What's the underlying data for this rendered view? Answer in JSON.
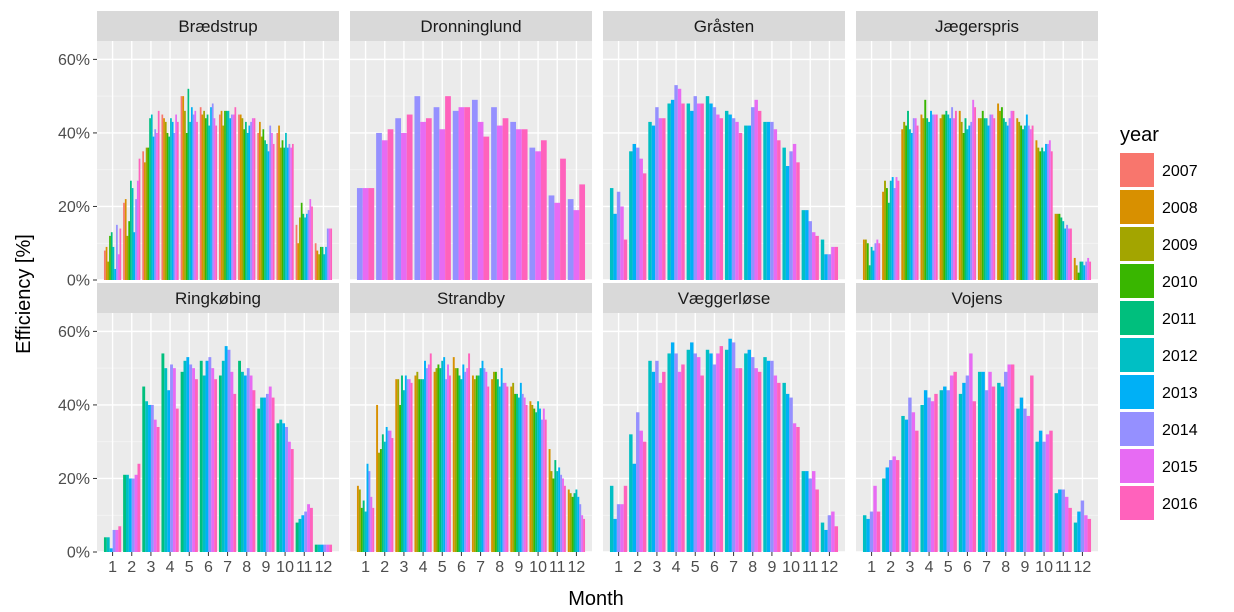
{
  "chart_data": {
    "type": "bar",
    "xlabel": "Month",
    "ylabel": "Efficiency [%]",
    "ylim": [
      0,
      65
    ],
    "y_ticks": [
      "0%",
      "20%",
      "40%",
      "60%"
    ],
    "x_ticks": [
      "1",
      "2",
      "3",
      "4",
      "5",
      "6",
      "7",
      "8",
      "9",
      "10",
      "11",
      "12"
    ],
    "legend_title": "year",
    "legend_position": "right",
    "grid": true,
    "series": [
      {
        "name": "2007",
        "color": "#F8766D"
      },
      {
        "name": "2008",
        "color": "#D89000"
      },
      {
        "name": "2009",
        "color": "#A3A500"
      },
      {
        "name": "2010",
        "color": "#39B600"
      },
      {
        "name": "2011",
        "color": "#00BF7D"
      },
      {
        "name": "2012",
        "color": "#00BFC4"
      },
      {
        "name": "2013",
        "color": "#00B0F6"
      },
      {
        "name": "2014",
        "color": "#9590FF"
      },
      {
        "name": "2015",
        "color": "#E76BF3"
      },
      {
        "name": "2016",
        "color": "#FF62BC"
      }
    ],
    "panels": [
      {
        "name": "Brædstrup",
        "years": [
          "2007",
          "2008",
          "2009",
          "2010",
          "2011",
          "2012",
          "2013",
          "2014",
          "2015",
          "2016"
        ],
        "values": [
          [
            8,
            21,
            35,
            45,
            50,
            47,
            45,
            45,
            40,
            40,
            15,
            10
          ],
          [
            9,
            22,
            32,
            44,
            50,
            45,
            46,
            45,
            43,
            42,
            10,
            8
          ],
          [
            5,
            12,
            36,
            43,
            46,
            46,
            42,
            44,
            39,
            36,
            17,
            7
          ],
          [
            12,
            16,
            36,
            40,
            40,
            44,
            46,
            41,
            41,
            38,
            21,
            9
          ],
          [
            13,
            27,
            44,
            39,
            52,
            45,
            46,
            43,
            38,
            36,
            18,
            9
          ],
          [
            9,
            25,
            45,
            44,
            43,
            42,
            46,
            40,
            37,
            40,
            17,
            7
          ],
          [
            3,
            13,
            39,
            43,
            47,
            47,
            44,
            42,
            35,
            36,
            18,
            9
          ],
          [
            15,
            22,
            41,
            40,
            45,
            48,
            45,
            43,
            42,
            37,
            19,
            14
          ],
          [
            7,
            27,
            40,
            45,
            46,
            44,
            45,
            44,
            40,
            36,
            22,
            14
          ],
          [
            14,
            33,
            46,
            43,
            43,
            42,
            47,
            44,
            37,
            37,
            20,
            14
          ]
        ]
      },
      {
        "name": "Dronninglund",
        "years": [
          "2014",
          "2015",
          "2016"
        ],
        "values": [
          [
            25,
            40,
            44,
            50,
            47,
            46,
            49,
            47,
            43,
            36,
            23,
            22
          ],
          [
            25,
            38,
            40,
            43,
            41,
            47,
            43,
            42,
            41,
            35,
            21,
            19
          ],
          [
            25,
            41,
            45,
            44,
            50,
            47,
            39,
            44,
            41,
            38,
            33,
            26
          ]
        ]
      },
      {
        "name": "Gråsten",
        "years": [
          "2012",
          "2013",
          "2014",
          "2015",
          "2016"
        ],
        "values": [
          [
            25,
            35,
            43,
            48,
            48,
            50,
            46,
            42,
            43,
            36,
            19,
            11
          ],
          [
            18,
            37,
            42,
            49,
            46,
            48,
            45,
            42,
            43,
            31,
            19,
            7
          ],
          [
            24,
            36,
            47,
            53,
            50,
            47,
            44,
            47,
            43,
            35,
            16,
            7
          ],
          [
            20,
            33,
            44,
            52,
            48,
            45,
            43,
            49,
            41,
            37,
            13,
            9
          ],
          [
            11,
            29,
            44,
            48,
            48,
            44,
            40,
            46,
            38,
            32,
            12,
            9
          ]
        ]
      },
      {
        "name": "Jægerspris",
        "years": [
          "2008",
          "2009",
          "2010",
          "2011",
          "2012",
          "2013",
          "2014",
          "2015",
          "2016"
        ],
        "values": [
          [
            11,
            24,
            41,
            45,
            44,
            46,
            44,
            48,
            44,
            38,
            18,
            6
          ],
          [
            11,
            27,
            43,
            44,
            45,
            43,
            44,
            46,
            43,
            36,
            18,
            4
          ],
          [
            10,
            25,
            42,
            49,
            45,
            40,
            46,
            47,
            42,
            35,
            18,
            2
          ],
          [
            4,
            21,
            46,
            44,
            46,
            44,
            44,
            44,
            41,
            36,
            17,
            5
          ],
          [
            9,
            27,
            41,
            43,
            45,
            41,
            44,
            43,
            42,
            35,
            16,
            5
          ],
          [
            8,
            28,
            40,
            46,
            44,
            42,
            42,
            42,
            45,
            37,
            14,
            4
          ],
          [
            10,
            25,
            44,
            45,
            47,
            43,
            45,
            44,
            42,
            37,
            15,
            5
          ],
          [
            11,
            28,
            44,
            45,
            44,
            49,
            45,
            46,
            41,
            38,
            14,
            6
          ],
          [
            10,
            27,
            42,
            45,
            46,
            47,
            44,
            46,
            42,
            35,
            14,
            5
          ]
        ]
      },
      {
        "name": "Ringkøbing",
        "years": [
          "2011",
          "2012",
          "2013",
          "2014",
          "2015",
          "2016"
        ],
        "values": [
          [
            4,
            21,
            45,
            54,
            49,
            52,
            48,
            52,
            39,
            35,
            8,
            2
          ],
          [
            4,
            21,
            41,
            50,
            52,
            48,
            52,
            49,
            42,
            36,
            9,
            2
          ],
          [
            1,
            20,
            40,
            44,
            53,
            52,
            56,
            48,
            42,
            35,
            10,
            2
          ],
          [
            6,
            20,
            40,
            51,
            51,
            53,
            55,
            50,
            43,
            34,
            11,
            2
          ],
          [
            6,
            21,
            36,
            50,
            50,
            50,
            49,
            48,
            45,
            30,
            13,
            2
          ],
          [
            7,
            24,
            34,
            39,
            47,
            47,
            43,
            44,
            42,
            28,
            12,
            2
          ]
        ]
      },
      {
        "name": "Strandby",
        "years": [
          "2008",
          "2009",
          "2010",
          "2011",
          "2012",
          "2013",
          "2014",
          "2015",
          "2016"
        ],
        "values": [
          [
            18,
            40,
            47,
            48,
            49,
            53,
            48,
            47,
            45,
            41,
            28,
            17
          ],
          [
            17,
            27,
            47,
            49,
            50,
            50,
            47,
            49,
            46,
            40,
            22,
            16
          ],
          [
            12,
            28,
            40,
            47,
            51,
            50,
            48,
            49,
            43,
            39,
            20,
            15
          ],
          [
            14,
            32,
            48,
            47,
            50,
            48,
            48,
            47,
            43,
            38,
            25,
            16
          ],
          [
            11,
            30,
            44,
            47,
            52,
            47,
            50,
            45,
            42,
            41,
            22,
            17
          ],
          [
            24,
            34,
            48,
            52,
            53,
            51,
            52,
            50,
            46,
            39,
            23,
            15
          ],
          [
            22,
            33,
            47,
            50,
            47,
            49,
            50,
            46,
            43,
            36,
            21,
            13
          ],
          [
            15,
            33,
            47,
            51,
            51,
            50,
            49,
            46,
            42,
            39,
            20,
            10
          ],
          [
            12,
            31,
            46,
            54,
            48,
            54,
            45,
            45,
            40,
            36,
            18,
            9
          ]
        ]
      },
      {
        "name": "Væggerløse",
        "years": [
          "2012",
          "2013",
          "2014",
          "2015",
          "2016"
        ],
        "values": [
          [
            18,
            32,
            52,
            54,
            55,
            55,
            55,
            54,
            53,
            46,
            22,
            8
          ],
          [
            9,
            24,
            49,
            57,
            57,
            54,
            58,
            55,
            52,
            43,
            22,
            6
          ],
          [
            13,
            38,
            52,
            54,
            54,
            51,
            57,
            53,
            52,
            42,
            20,
            10
          ],
          [
            13,
            33,
            46,
            49,
            53,
            54,
            50,
            50,
            48,
            35,
            22,
            11
          ],
          [
            18,
            30,
            49,
            51,
            48,
            56,
            50,
            49,
            46,
            34,
            17,
            7
          ]
        ]
      },
      {
        "name": "Vojens",
        "years": [
          "2012",
          "2013",
          "2014",
          "2015",
          "2016"
        ],
        "values": [
          [
            10,
            20,
            37,
            40,
            44,
            43,
            49,
            46,
            39,
            30,
            16,
            8
          ],
          [
            9,
            23,
            36,
            44,
            45,
            46,
            49,
            45,
            42,
            33,
            17,
            11
          ],
          [
            11,
            25,
            42,
            42,
            44,
            48,
            44,
            49,
            39,
            30,
            17,
            14
          ],
          [
            18,
            26,
            38,
            41,
            48,
            54,
            49,
            51,
            37,
            32,
            15,
            10
          ],
          [
            11,
            25,
            33,
            43,
            49,
            41,
            45,
            51,
            48,
            33,
            12,
            9
          ]
        ]
      }
    ]
  }
}
